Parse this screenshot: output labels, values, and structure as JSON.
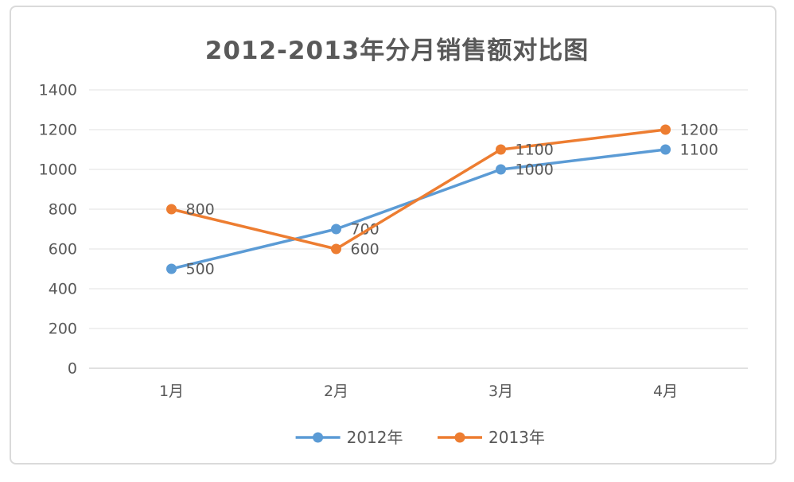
{
  "page": {
    "background_color": "#ffffff",
    "frame_border_color": "#dadada"
  },
  "chart_data": {
    "type": "line",
    "title": "2012-2013年分月销售额对比图",
    "categories": [
      "1月",
      "2月",
      "3月",
      "4月"
    ],
    "series": [
      {
        "name": "2012年",
        "color": "#5b9bd5",
        "values": [
          500,
          700,
          1000,
          1100
        ]
      },
      {
        "name": "2013年",
        "color": "#ed7d31",
        "values": [
          800,
          600,
          1100,
          1200
        ]
      }
    ],
    "ylim": [
      0,
      1400
    ],
    "yticks": [
      0,
      200,
      400,
      600,
      800,
      1000,
      1200,
      1400
    ],
    "xlabel": "",
    "ylabel": "",
    "grid": true,
    "data_labels": true,
    "legend_position": "bottom",
    "marker": "circle",
    "text_color": "#595959",
    "grid_color": "#ebebeb",
    "axis_line_color": "#d6d6d6"
  }
}
